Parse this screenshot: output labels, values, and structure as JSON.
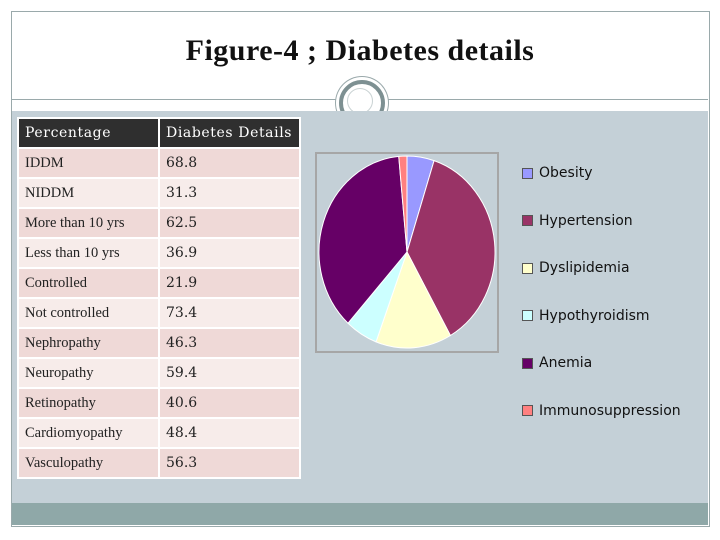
{
  "slide": {
    "title": "Figure-4 ; Diabetes details"
  },
  "table": {
    "headers": [
      "Percentage",
      "Diabetes Details"
    ],
    "rows": [
      [
        "IDDM",
        "68.8"
      ],
      [
        "NIDDM",
        "31.3"
      ],
      [
        "More than 10 yrs",
        "62.5"
      ],
      [
        "Less than 10 yrs",
        "36.9"
      ],
      [
        "Controlled",
        "21.9"
      ],
      [
        "Not controlled",
        "73.4"
      ],
      [
        "Nephropathy",
        "46.3"
      ],
      [
        "Neuropathy",
        "59.4"
      ],
      [
        "Retinopathy",
        "40.6"
      ],
      [
        "Cardiomyopathy",
        "48.4"
      ],
      [
        "Vasculopathy",
        "56.3"
      ]
    ]
  },
  "colors": {
    "panel": "#c4d0d7",
    "header_bg": "#2f2f2f",
    "row_odd": "#efd9d7",
    "row_even": "#f7ecea",
    "footer": "#8fa8a8"
  },
  "chart_data": {
    "type": "pie",
    "title": "",
    "legend_position": "right",
    "categories": [
      "Obesity",
      "Hypertension",
      "Dyslipidemia",
      "Hypothyroidism",
      "Anemia",
      "Immunosuppression"
    ],
    "values": [
      5,
      37,
      14,
      6,
      37,
      1.5
    ],
    "colors": [
      "#9999ff",
      "#993366",
      "#ffffcc",
      "#ccffff",
      "#660066",
      "#ff8080"
    ]
  }
}
